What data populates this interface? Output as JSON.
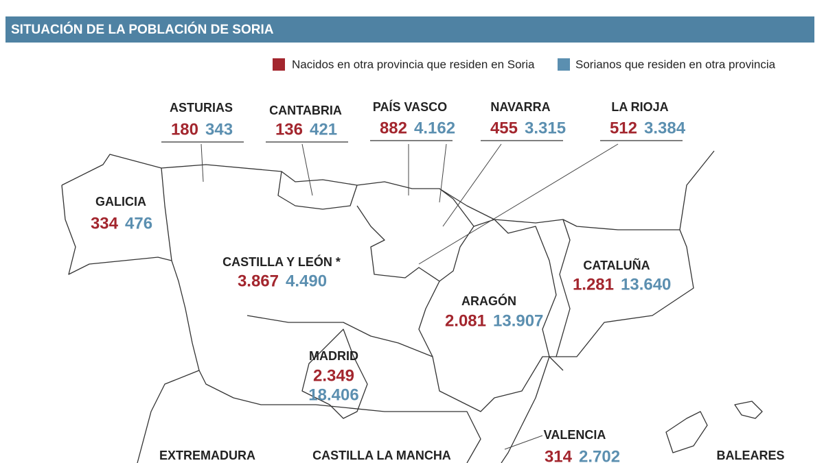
{
  "header": {
    "title": "SITUACIÓN DE LA POBLACIÓN DE SORIA"
  },
  "legend": [
    {
      "label": "Nacidos en otra provincia que residen en Soria",
      "color": "#a3262e"
    },
    {
      "label": "Sorianos que residen en otra provincia",
      "color": "#5b8fb0"
    }
  ],
  "regions": [
    {
      "name": "ASTURIAS",
      "born": "180",
      "sorians": "343"
    },
    {
      "name": "CANTABRIA",
      "born": "136",
      "sorians": "421"
    },
    {
      "name": "PAÍS VASCO",
      "born": "882",
      "sorians": "4.162"
    },
    {
      "name": "NAVARRA",
      "born": "455",
      "sorians": "3.315"
    },
    {
      "name": "LA RIOJA",
      "born": "512",
      "sorians": "3.384"
    },
    {
      "name": "GALICIA",
      "born": "334",
      "sorians": "476"
    },
    {
      "name": "CASTILLA Y LEÓN *",
      "born": "3.867",
      "sorians": "4.490"
    },
    {
      "name": "CATALUÑA",
      "born": "1.281",
      "sorians": "13.640"
    },
    {
      "name": "ARAGÓN",
      "born": "2.081",
      "sorians": "13.907"
    },
    {
      "name": "MADRID",
      "born": "2.349",
      "sorians": "18.406"
    },
    {
      "name": "VALENCIA",
      "born": "314",
      "sorians": "2.702"
    },
    {
      "name": "EXTREMADURA"
    },
    {
      "name": "CASTILLA LA MANCHA"
    },
    {
      "name": "BALEARES"
    }
  ]
}
